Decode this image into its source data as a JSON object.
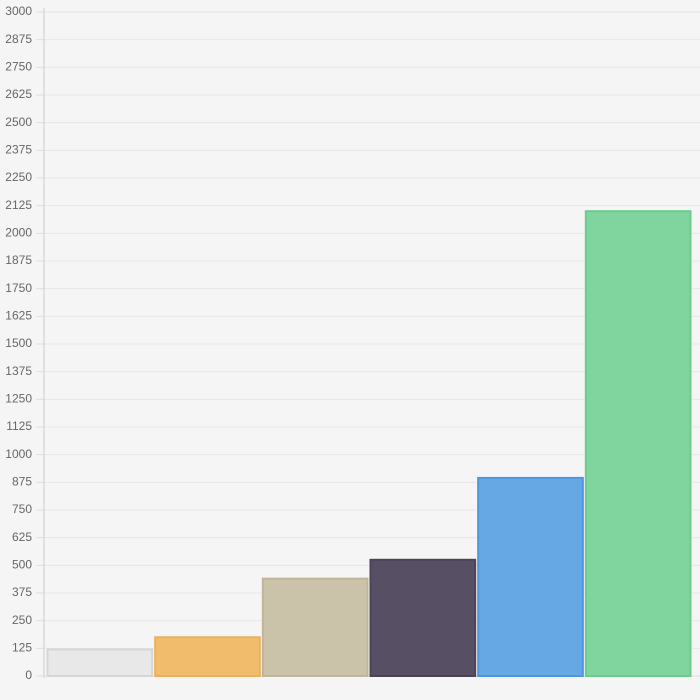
{
  "chart_data": {
    "type": "bar",
    "categories": [
      null,
      null,
      null,
      null,
      null,
      null
    ],
    "values": [
      120,
      175,
      440,
      525,
      895,
      2100
    ],
    "colors": [
      "#e8e8e8",
      "#f1bd6c",
      "#cbc3a9",
      "#574f63",
      "#66a8e4",
      "#80d49e"
    ],
    "border_colors": [
      "#d6d6d6",
      "#eab060",
      "#c0b59a",
      "#4b4457",
      "#4d97de",
      "#6ccb8d"
    ],
    "ylim": [
      0,
      3000
    ],
    "yticks": [
      0,
      125,
      250,
      375,
      500,
      625,
      750,
      875,
      1000,
      1125,
      1250,
      1375,
      1500,
      1625,
      1750,
      1875,
      2000,
      2125,
      2250,
      2375,
      2500,
      2625,
      2750,
      2875,
      3000
    ],
    "grid": true
  }
}
